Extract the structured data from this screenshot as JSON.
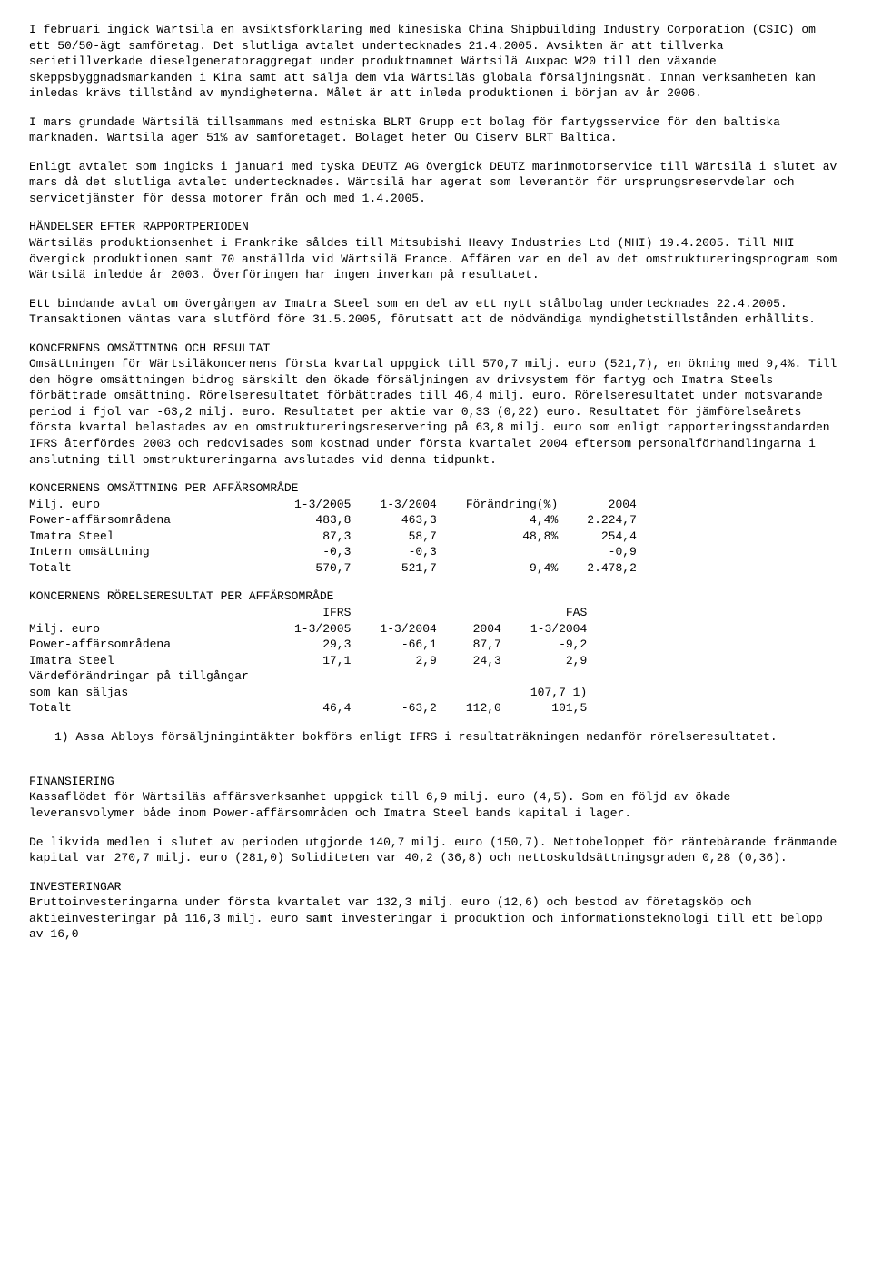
{
  "p1": "I februari ingick Wärtsilä en avsiktsförklaring med kinesiska China Shipbuilding Industry Corporation (CSIC) om ett 50/50-ägt samföretag. Det slutliga avtalet undertecknades 21.4.2005. Avsikten är att tillverka serietillverkade dieselgeneratoraggregat under produktnamnet Wärtsilä Auxpac W20 till den växande skeppsbyggnadsmarkanden i Kina samt att sälja dem via Wärtsiläs globala försäljningsnät. Innan verksamheten kan inledas krävs tillstånd av myndigheterna. Målet är att inleda produktionen i början av år 2006.",
  "p2": "I mars grundade Wärtsilä tillsammans med estniska BLRT Grupp ett bolag för fartygsservice för den baltiska marknaden. Wärtsilä äger 51% av samföretaget. Bolaget heter Oü Ciserv BLRT Baltica.",
  "p3": "Enligt avtalet som ingicks i januari med tyska DEUTZ AG övergick DEUTZ marinmotorservice till Wärtsilä i slutet av mars då det slutliga avtalet undertecknades. Wärtsilä har agerat som leverantör för ursprungsreservdelar och servicetjänster för dessa motorer från och med 1.4.2005.",
  "h1": "HÄNDELSER EFTER RAPPORTPERIODEN",
  "p4": "Wärtsiläs produktionsenhet i Frankrike såldes till Mitsubishi Heavy Industries Ltd (MHI) 19.4.2005. Till MHI övergick produktionen samt 70 anställda vid Wärtsilä France. Affären var en del av det omstruktureringsprogram som Wärtsilä inledde år 2003. Överföringen har ingen inverkan på resultatet.",
  "p5": "Ett bindande avtal om övergången av Imatra Steel som en del av ett nytt stålbolag undertecknades 22.4.2005. Transaktionen väntas vara slutförd före 31.5.2005, förutsatt att de nödvändiga myndighetstillstånden erhållits.",
  "h2": "KONCERNENS OMSÄTTNING OCH RESULTAT",
  "p6": "Omsättningen för Wärtsiläkoncernens första kvartal uppgick till 570,7 milj. euro (521,7), en ökning med 9,4%. Till den högre omsättningen bidrog särskilt den ökade försäljningen av drivsystem för fartyg och Imatra Steels förbättrade omsättning. Rörelseresultatet förbättrades till 46,4 milj. euro. Rörelseresultatet under motsvarande period i fjol var -63,2 milj. euro. Resultatet per aktie var 0,33 (0,22) euro. Resultatet för jämförelseårets första kvartal belastades av en omstruktureringsreservering på 63,8 milj. euro som enligt rapporteringsstandarden IFRS återfördes 2003 och redovisades som kostnad under första kvartalet 2004 eftersom personalförhandlingarna i anslutning till omstruktureringarna avslutades vid denna tidpunkt.",
  "t1": {
    "title": "KONCERNENS OMSÄTTNING PER AFFÄRSOMRÅDE",
    "header": [
      "Milj. euro",
      "1-3/2005",
      "1-3/2004",
      "Förändring(%)",
      "2004"
    ],
    "rows": [
      [
        "Power-affärsområdena",
        "483,8",
        "463,3",
        "4,4%",
        "2.224,7"
      ],
      [
        "Imatra Steel",
        "87,3",
        "58,7",
        "48,8%",
        "254,4"
      ],
      [
        "Intern omsättning",
        "-0,3",
        "-0,3",
        "",
        "-0,9"
      ],
      [
        "Totalt",
        "570,7",
        "521,7",
        "9,4%",
        "2.478,2"
      ]
    ]
  },
  "t2": {
    "title": "KONCERNENS RÖRELSERESULTAT PER AFFÄRSOMRÅDE",
    "super": [
      "",
      "IFRS",
      "",
      "",
      "FAS"
    ],
    "header": [
      "Milj. euro",
      "1-3/2005",
      "1-3/2004",
      "2004",
      "1-3/2004"
    ],
    "rows": [
      [
        "Power-affärsområdena",
        "29,3",
        "-66,1",
        "87,7",
        "-9,2"
      ],
      [
        "Imatra Steel",
        "17,1",
        "2,9",
        "24,3",
        "2,9"
      ],
      [
        "Värdeförändringar på tillgångar",
        "",
        "",
        "",
        ""
      ],
      [
        "som kan säljas",
        "",
        "",
        "",
        "107,7 1)"
      ],
      [
        "Totalt",
        "46,4",
        "-63,2",
        "112,0",
        "101,5"
      ]
    ],
    "footnote": "1) Assa Abloys försäljningintäkter bokförs enligt IFRS i resultaträkningen nedanför rörelseresultatet."
  },
  "h3": "FINANSIERING",
  "p7": "Kassaflödet för Wärtsiläs affärsverksamhet uppgick till 6,9 milj. euro (4,5). Som en följd av ökade leveransvolymer både inom Power-affärsområden och Imatra Steel bands kapital i lager.",
  "p8": "De likvida medlen i slutet av perioden utgjorde 140,7 milj. euro (150,7). Nettobeloppet för räntebärande främmande kapital var 270,7 milj. euro (281,0) Soliditeten var 40,2 (36,8) och nettoskuldsättningsgraden 0,28 (0,36).",
  "h4": "INVESTERINGAR",
  "p9": "Bruttoinvesteringarna under första kvartalet var 132,3 milj. euro (12,6) och bestod av företagsköp och aktieinvesteringar på 116,3 milj. euro samt investeringar i produktion och informationsteknologi till ett belopp av 16,0"
}
